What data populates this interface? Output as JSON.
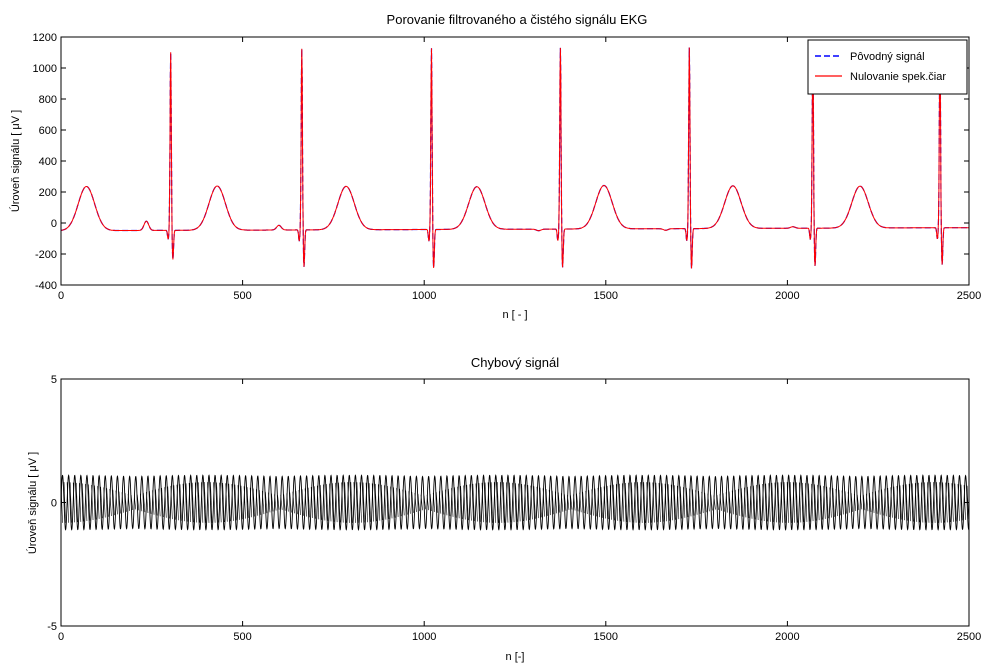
{
  "figure": {
    "background": "#ffffff",
    "axes_color": "#000000"
  },
  "chart_data": [
    {
      "type": "line",
      "title": "Porovanie filtrovaného a čistého signálu EKG",
      "xlabel": "n [ - ]",
      "ylabel": "Úroveň signálu [ μV ]",
      "xlim": [
        0,
        2500
      ],
      "ylim": [
        -400,
        1200
      ],
      "xticks": [
        0,
        500,
        1000,
        1500,
        2000,
        2500
      ],
      "yticks": [
        -400,
        -200,
        0,
        200,
        400,
        600,
        800,
        1000,
        1200
      ],
      "grid": false,
      "legend_position": "top-right",
      "beats": {
        "r_peak_n": [
          302,
          663,
          1020,
          1375,
          1730,
          2070,
          2420
        ],
        "r_peak_uV": [
          1150,
          1170,
          1170,
          1170,
          1170,
          1180,
          1170
        ],
        "s_wave_uV": [
          -190,
          -240,
          -250,
          -250,
          -260,
          -245,
          -240
        ],
        "t_wave_n": [
          70,
          430,
          785,
          1145,
          1495,
          1850,
          2200
        ],
        "t_wave_uV": [
          285,
          285,
          280,
          275,
          280,
          275,
          270
        ],
        "p_wave_n": [
          235,
          600,
          960,
          1315,
          1665,
          2015,
          2355
        ],
        "p_wave_uV": [
          20,
          -10,
          -40,
          -50,
          -50,
          -30,
          -40
        ],
        "start_uV": -10,
        "end_uV": 10
      },
      "series": [
        {
          "name": "Pôvodný signál",
          "style": "dashed",
          "color": "#0000ff"
        },
        {
          "name": "Nulovanie spek.čiar",
          "style": "solid",
          "color": "#ff0000"
        }
      ]
    },
    {
      "type": "line",
      "title": "Chybový signál",
      "xlabel": "n [-]",
      "ylabel": "Úroveň signálu [ μV ]",
      "xlim": [
        0,
        2500
      ],
      "ylim": [
        -5,
        5
      ],
      "xticks": [
        0,
        500,
        1000,
        1500,
        2000,
        2500
      ],
      "yticks": [
        -5,
        0,
        5
      ],
      "grid": false,
      "error_signal": {
        "amplitude_uV": 1.1,
        "period_n": 16.8,
        "beat_period_n": 400,
        "color": "#000000"
      }
    }
  ]
}
